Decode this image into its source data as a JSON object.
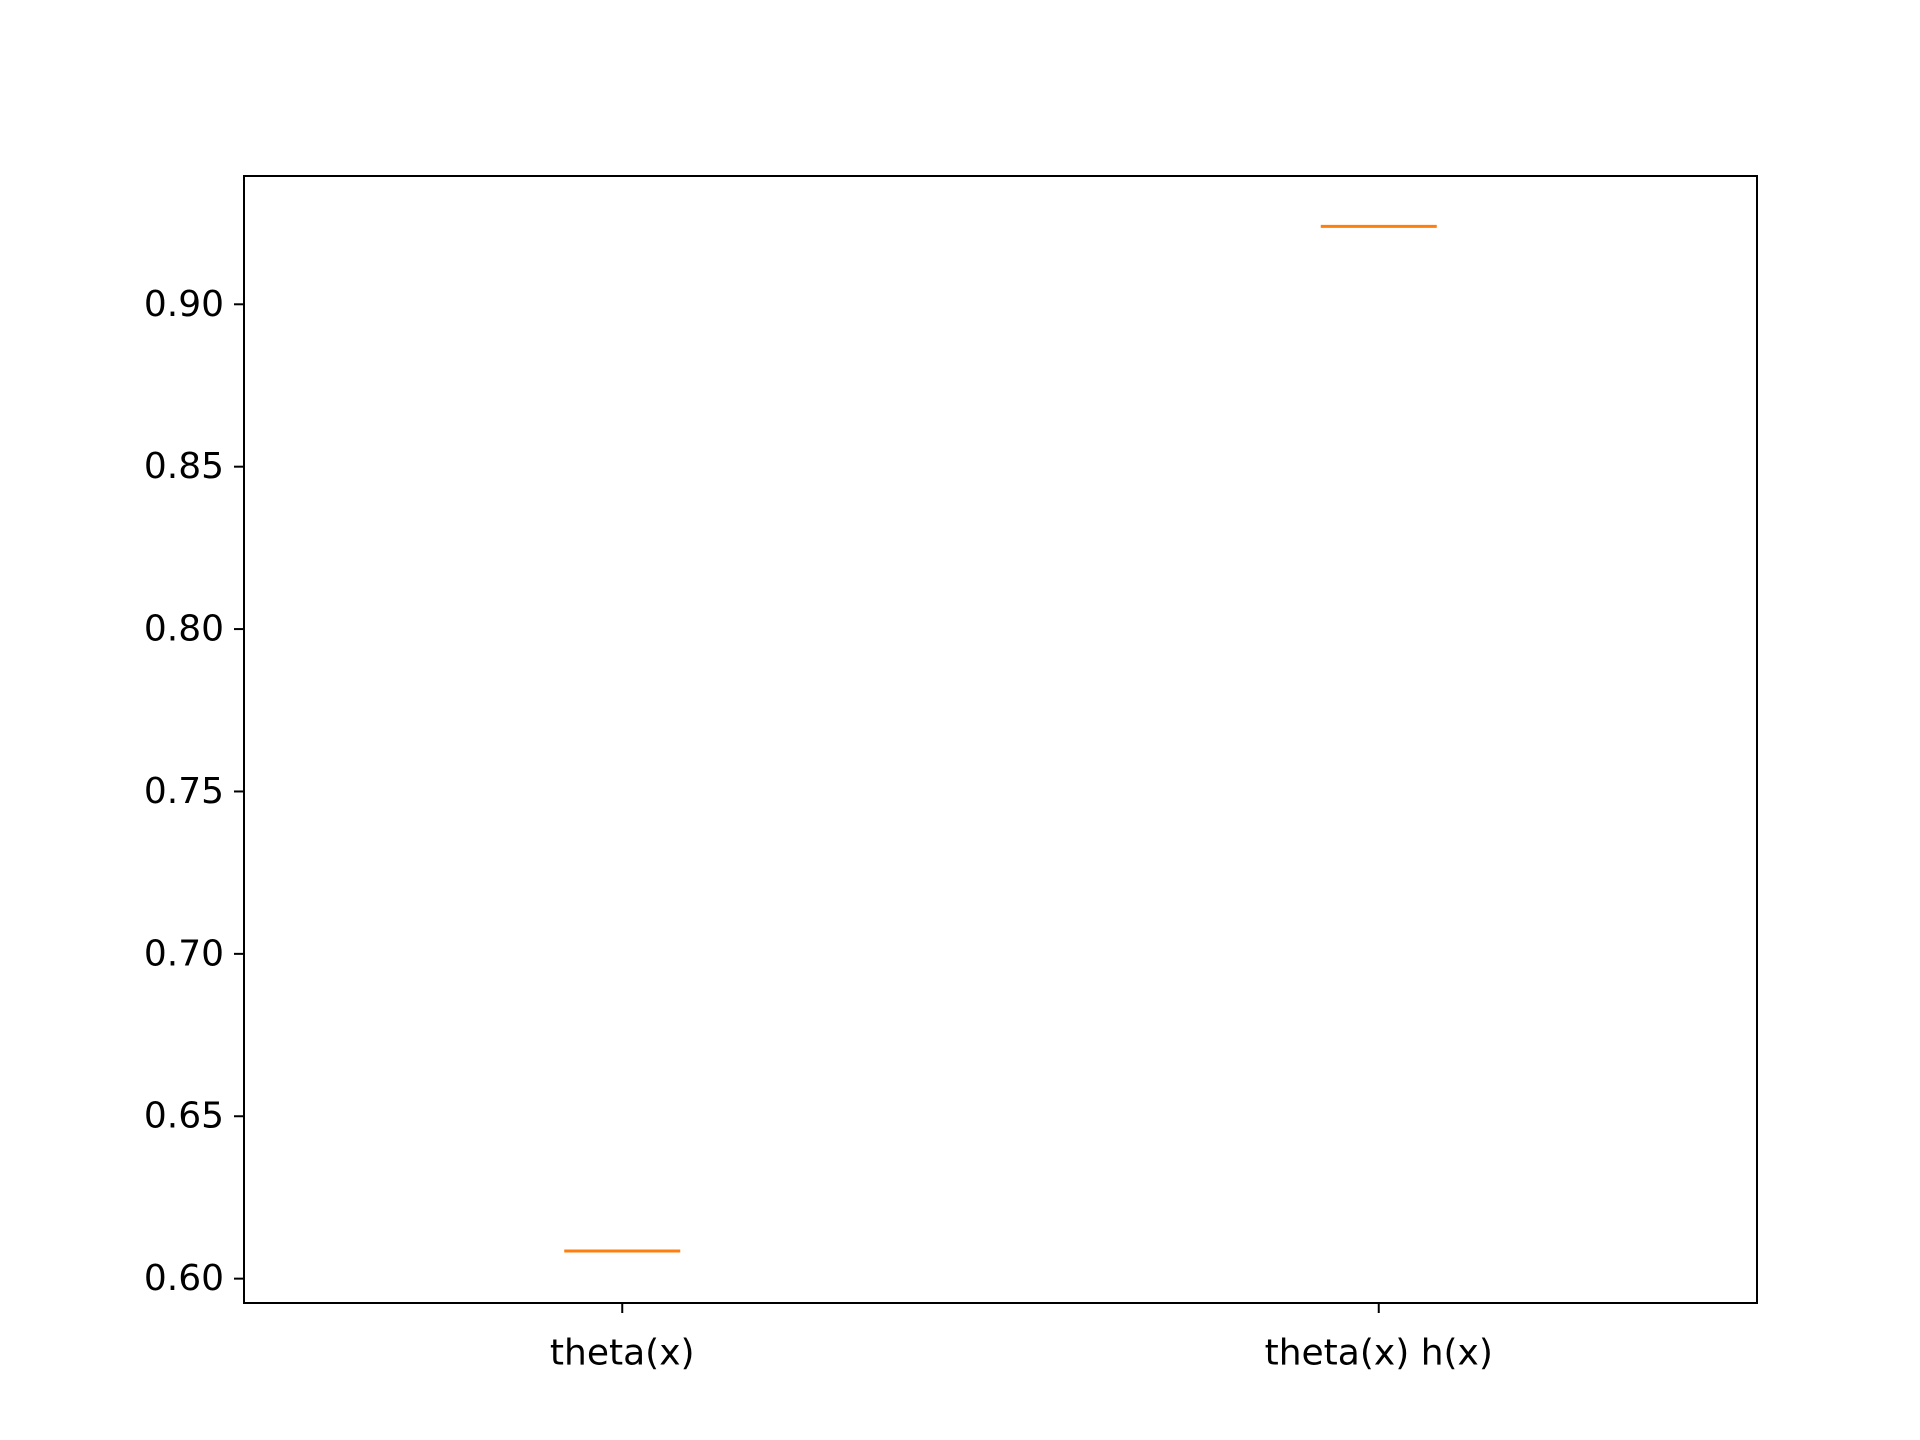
{
  "chart_data": {
    "type": "box",
    "title": "",
    "xlabel": "",
    "ylabel": "",
    "categories": [
      "theta(x)",
      "theta(x) h(x)"
    ],
    "values": [
      0.6085,
      0.924
    ],
    "ylim": [
      0.5925,
      0.9395
    ],
    "yticks": [
      {
        "value": 0.6,
        "label": "0.60"
      },
      {
        "value": 0.65,
        "label": "0.65"
      },
      {
        "value": 0.7,
        "label": "0.70"
      },
      {
        "value": 0.75,
        "label": "0.75"
      },
      {
        "value": 0.8,
        "label": "0.80"
      },
      {
        "value": 0.85,
        "label": "0.85"
      },
      {
        "value": 0.9,
        "label": "0.90"
      }
    ],
    "median_color": "#ff7f0e",
    "axis_color": "#000000",
    "grid": false,
    "legend": "none"
  }
}
